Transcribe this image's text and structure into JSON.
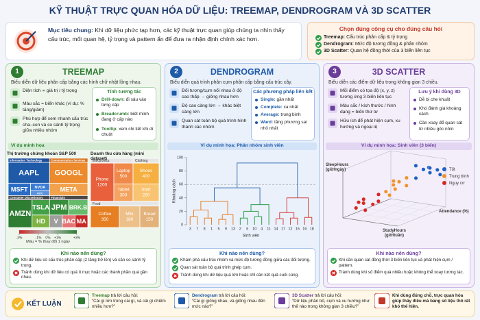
{
  "header": {
    "title": "KỸ THUẬT TRỰC QUAN HÓA DỮ LIỆU: TREEMAP, DENDROGRAM VÀ 3D SCATTER"
  },
  "goal": {
    "label": "Mục tiêu chung:",
    "text": "Khi dữ liệu phức tạp hơn, các kỹ thuật trực quan giúp chúng ta nhìn thấy cấu trúc, mối quan hệ, tỷ trọng và pattern ẩn để đưa ra nhận định chính xác hơn."
  },
  "tool_choice": {
    "title": "Chọn đúng công cụ cho đúng câu hỏi",
    "items": [
      {
        "name": "Treemap:",
        "text": "Cấu trúc phân cấp & tỷ trọng"
      },
      {
        "name": "Dendrogram:",
        "text": "Mức độ tương đồng & phân nhóm"
      },
      {
        "name": "3D Scatter:",
        "text": "Quan hệ đồng thời của 3 biến liên tục"
      }
    ]
  },
  "columns": [
    {
      "number": "1",
      "title": "TREEMAP",
      "subtitle": "Biểu diễn dữ liệu phân cấp bằng các hình chữ nhật lồng nhau.",
      "features": [
        "Diện tích ∝ giá trị / tỷ trọng",
        "Màu sắc = biến khác (ví dụ: % tăng/giảm)",
        "Phù hợp để xem nhanh cấu trúc cha–con và so sánh tỷ trọng giữa nhiều nhóm"
      ],
      "side_title": "Tính tương tác",
      "side_items": [
        {
          "name": "Drill-down:",
          "text": "đi sâu vào từng cấp"
        },
        {
          "name": "Breadcrumb:",
          "text": "biết mình đang ở cấp nào"
        },
        {
          "name": "Tooltip:",
          "text": "xem chi tiết khi di chuột"
        }
      ],
      "example_label": "Ví dụ minh họa",
      "when_title": "Khi nào nên dùng?",
      "when": [
        {
          "ok": true,
          "text": "Khi dữ liệu có cấu trúc phân cấp (2 tầng trở lên) và cần so sánh tỷ trọng."
        },
        {
          "ok": false,
          "text": "Tránh dùng khi dữ liệu có quá ít mục hoặc các thành phần quá gần nhau."
        }
      ]
    },
    {
      "number": "2",
      "title": "DENDROGRAM",
      "subtitle": "Biểu diễn quá trình phân cụm phân cấp bằng cấu trúc cây.",
      "features": [
        "Đối tượng/cụm nối nhau ở độ cao thấp → giống nhau hơn",
        "Độ cao càng lớn → khác biệt càng lớn",
        "Quan sát toàn bộ quá trình hình thành các nhóm"
      ],
      "side_title": "Các phương pháp liên kết",
      "side_items": [
        {
          "name": "Single:",
          "text": "gần nhất"
        },
        {
          "name": "Complete:",
          "text": "xa nhất"
        },
        {
          "name": "Average:",
          "text": "trung bình"
        },
        {
          "name": "Ward:",
          "text": "tăng phương sai nhỏ nhất"
        }
      ],
      "when_title": "Khi nào nên dùng?",
      "when": [
        {
          "ok": true,
          "text": "Khám phá cấu trúc nhóm và mức độ tương đồng giữa các đối tượng."
        },
        {
          "ok": true,
          "text": "Quan sát toàn bộ quá trình ghép cụm."
        },
        {
          "ok": false,
          "text": "Tránh dùng khi dữ liệu quá lớn hoặc chỉ cần kết quả cuối cùng."
        }
      ]
    },
    {
      "number": "3",
      "title": "3D SCATTER",
      "subtitle": "Biểu diễn các điểm dữ liệu trong không gian 3 chiều.",
      "features": [
        "Mỗi điểm có tọa độ (x, y, z) tương ứng 3 biến liên tục",
        "Màu sắc / kích thước / hình dạng = biến thứ tư",
        "Hữu ích để phát hiện cụm, xu hướng và ngoại lệ"
      ],
      "side_title": "Lưu ý khi dùng 3D",
      "side_items": [
        {
          "text": "Dễ bị che khuất"
        },
        {
          "text": "Khó đánh giá khoảng cách"
        },
        {
          "text": "Cần xoay để quan sát từ nhiều góc nhìn"
        }
      ],
      "when_title": "Khi nào nên dùng?",
      "when": [
        {
          "ok": true,
          "text": "Khi cần quan sát đồng thời 3 biến liên tục và phát hiện cụm / pattern."
        },
        {
          "ok": false,
          "text": "Tránh dùng khi số điểm quá nhiều hoặc không thể xoay tương tác."
        }
      ]
    }
  ],
  "chart_data": [
    {
      "type": "treemap",
      "title": "Thị trường chứng khoán S&P 500",
      "sectors": [
        {
          "name": "Information Technology",
          "color": "#1f4e9c",
          "tiles": [
            {
              "name": "AAPL",
              "color": "#1e5aa8"
            },
            {
              "name": "MSFT",
              "color": "#2b6cc4"
            },
            {
              "name": "NVDA",
              "color": "#3a7bd5"
            },
            {
              "name": "INTC",
              "color": "#5b93de"
            }
          ]
        },
        {
          "name": "Communication Services",
          "color": "#d9731f",
          "tiles": [
            {
              "name": "GOOGL",
              "color": "#ec8a2c"
            },
            {
              "name": "META",
              "color": "#f2a24c"
            }
          ]
        },
        {
          "name": "Consumer Discretionary",
          "color": "#4a4a4a",
          "tiles": [
            {
              "name": "AMZN",
              "color": "#2e7d32"
            },
            {
              "name": "TSLA",
              "color": "#43a047"
            },
            {
              "name": "HD",
              "color": "#7cb342"
            }
          ]
        },
        {
          "name": "Financials",
          "color": "#4a4a4a",
          "tiles": [
            {
              "name": "JPM",
              "color": "#388e3c"
            },
            {
              "name": "BRK.B",
              "color": "#66bb6a"
            },
            {
              "name": "V",
              "color": "#9e9e9e"
            },
            {
              "name": "BAC",
              "color": "#e57373"
            },
            {
              "name": "MA",
              "color": "#c62828"
            }
          ]
        }
      ],
      "colorbar": {
        "label": "Màu = % thay đổi 1 ngày",
        "colors": [
          "#c62828",
          "#bdbdbd",
          "#2e7d32"
        ],
        "xlim": [
          -3,
          3
        ],
        "ticks": [
          {
            "value": -3,
            "label": "-3%"
          },
          {
            "value": -1,
            "label": "-1%"
          },
          {
            "value": 0,
            "label": "0%"
          },
          {
            "value": 1,
            "label": "+1%"
          },
          {
            "value": 3,
            "label": "+3%"
          }
        ]
      }
    },
    {
      "type": "treemap",
      "title": "Doanh thu cửa hàng (mini dataset)",
      "groups": [
        {
          "name": "Electronics",
          "items": [
            {
              "name": "Phone",
              "value": 1200,
              "color": "#e8603c"
            },
            {
              "name": "Laptop",
              "value": 500,
              "color": "#f08a4b"
            },
            {
              "name": "Tablet",
              "value": 300,
              "color": "#f4a460"
            }
          ]
        },
        {
          "name": "Clothing",
          "items": [
            {
              "name": "Shoes",
              "value": 400,
              "color": "#f5b041"
            },
            {
              "name": "Shirt",
              "value": 200,
              "color": "#f8c471"
            }
          ]
        },
        {
          "name": "Food",
          "items": [
            {
              "name": "Coffee",
              "value": 350,
              "color": "#e67e22"
            },
            {
              "name": "Milk",
              "value": 180,
              "color": "#edc08a"
            },
            {
              "name": "Bread",
              "value": 150,
              "color": "#e2b27a"
            }
          ]
        }
      ]
    },
    {
      "type": "dendrogram",
      "title": "Ví dụ minh họa: Phân nhóm sinh viên",
      "xlabel": "Sinh viên",
      "ylabel": "Khoảng cách",
      "leaves": [
        3,
        7,
        8,
        1,
        5,
        9,
        13,
        2,
        6,
        10,
        4,
        11,
        14,
        17,
        12,
        15,
        16,
        18
      ],
      "links": [
        {
          "a": 0,
          "b": 1,
          "height": 12,
          "color": "#e67e22"
        },
        {
          "a": 2,
          "b": 3,
          "height": 10,
          "color": "#e67e22"
        },
        {
          "a": 18,
          "b": 19,
          "height": 22,
          "color": "#e67e22"
        },
        {
          "a": 4,
          "b": 5,
          "height": 8,
          "color": "#e67e22"
        },
        {
          "a": 21,
          "b": 6,
          "height": 15,
          "color": "#e67e22"
        },
        {
          "a": 20,
          "b": 22,
          "height": 35,
          "color": "#e67e22"
        },
        {
          "a": 7,
          "b": 8,
          "height": 10,
          "color": "#2e9d4a"
        },
        {
          "a": 9,
          "b": 10,
          "height": 12,
          "color": "#2e9d4a"
        },
        {
          "a": 24,
          "b": 25,
          "height": 20,
          "color": "#2e9d4a"
        },
        {
          "a": 26,
          "b": 11,
          "height": 30,
          "color": "#2e9d4a"
        },
        {
          "a": 12,
          "b": 13,
          "height": 9,
          "color": "#d64541"
        },
        {
          "a": 14,
          "b": 15,
          "height": 10,
          "color": "#d64541"
        },
        {
          "a": 16,
          "b": 17,
          "height": 11,
          "color": "#d64541"
        },
        {
          "a": 28,
          "b": 29,
          "height": 18,
          "color": "#d64541"
        },
        {
          "a": 31,
          "b": 30,
          "height": 40,
          "color": "#d64541"
        },
        {
          "a": 23,
          "b": 27,
          "height": 55,
          "color": "#3b6fb6"
        },
        {
          "a": 33,
          "b": 32,
          "height": 92,
          "color": "#3b6fb6"
        }
      ],
      "threshold": 60,
      "ylim": [
        0,
        100
      ],
      "yticks": [
        0,
        20,
        40,
        60,
        80,
        100
      ]
    },
    {
      "type": "scatter3d",
      "title": "Ví dụ minh họa: Sinh viên (3 biến)",
      "xlabel": "StudyHours (giờ/tuần)",
      "ylabel": "SleepHours (giờ/ngày)",
      "zlabel": "Attendance (%)",
      "xlim": [
        0,
        30
      ],
      "ylim": [
        4,
        9
      ],
      "zlim": [
        50,
        100
      ],
      "series": [
        {
          "name": "Tốt",
          "color": "#1f5fc4",
          "x": [
            20,
            22,
            24,
            26,
            27,
            21,
            25,
            28
          ],
          "y": [
            7.2,
            8.0,
            7.6,
            8.4,
            7.9,
            8.6,
            8.2,
            7.4
          ],
          "z": [
            88,
            92,
            95,
            90,
            97,
            86,
            93,
            98
          ]
        },
        {
          "name": "Trung bình",
          "color": "#f0922b",
          "x": [
            12,
            14,
            15,
            16,
            17,
            13,
            18,
            15
          ],
          "y": [
            6.2,
            6.8,
            7.0,
            6.5,
            7.3,
            7.1,
            6.6,
            6.0
          ],
          "z": [
            72,
            76,
            80,
            74,
            84,
            78,
            82,
            70
          ]
        },
        {
          "name": "Nguy cơ",
          "color": "#d62828",
          "x": [
            3,
            5,
            6,
            8,
            9,
            4,
            7,
            10
          ],
          "y": [
            4.8,
            5.2,
            5.6,
            5.0,
            5.9,
            5.5,
            4.6,
            5.3
          ],
          "z": [
            58,
            62,
            55,
            66,
            70,
            64,
            60,
            68
          ]
        }
      ]
    }
  ],
  "conclusion": {
    "title": "KẾT LUẬN",
    "items": [
      {
        "name": "Treemap",
        "lead": "trả lời câu hỏi:",
        "text": "“Cái gì lớn trong cái gì, và cái gì chiếm nhiều hơn?”"
      },
      {
        "name": "Dendrogram",
        "lead": "trả lời câu hỏi:",
        "text": "“Cái gì giống nhau, và giống nhau đến mức nào?”"
      },
      {
        "name": "3D Scatter",
        "lead": "trả lời câu hỏi:",
        "text": "“Dữ liệu phân bố, cụm và xu hướng như thế nào trong không gian 3 chiều?”"
      },
      {
        "text": "Khi dùng đúng chỗ, trực quan hóa giúp thấy điều mà bảng số liệu thô rất khó thể hiện."
      }
    ]
  }
}
